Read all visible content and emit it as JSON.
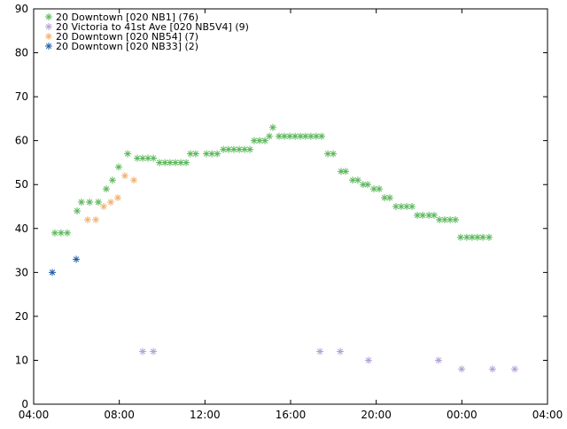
{
  "chart_data": {
    "type": "scatter",
    "legend": "upper left",
    "xlim": [
      4,
      28
    ],
    "xticks": [
      {
        "value": 4,
        "label": "04:00"
      },
      {
        "value": 8,
        "label": "08:00"
      },
      {
        "value": 12,
        "label": "12:00"
      },
      {
        "value": 16,
        "label": "16:00"
      },
      {
        "value": 20,
        "label": "20:00"
      },
      {
        "value": 24,
        "label": "00:00"
      },
      {
        "value": 28,
        "label": "04:00"
      }
    ],
    "ylim": [
      0,
      90
    ],
    "yticks": [
      0,
      10,
      20,
      30,
      40,
      50,
      60,
      70,
      80,
      90
    ],
    "series": [
      {
        "name": "20 Downtown [020 NB1] (76)",
        "color": "#5cb85c",
        "x": [
          4.99,
          5.28,
          5.57,
          6.03,
          6.23,
          6.61,
          7.02,
          7.39,
          7.68,
          7.97,
          8.39,
          8.84,
          9.09,
          9.34,
          9.59,
          9.88,
          10.13,
          10.37,
          10.62,
          10.87,
          11.12,
          11.32,
          11.57,
          12.07,
          12.32,
          12.57,
          12.86,
          13.1,
          13.35,
          13.6,
          13.85,
          14.1,
          14.3,
          14.55,
          14.8,
          15.01,
          15.17,
          15.46,
          15.71,
          15.96,
          16.21,
          16.46,
          16.7,
          16.95,
          17.2,
          17.45,
          17.74,
          17.99,
          18.36,
          18.57,
          18.9,
          19.14,
          19.39,
          19.6,
          19.89,
          20.14,
          20.39,
          20.63,
          20.92,
          21.17,
          21.42,
          21.67,
          21.92,
          22.17,
          22.46,
          22.7,
          22.95,
          23.2,
          23.45,
          23.7,
          23.94,
          24.23,
          24.48,
          24.73,
          24.98,
          25.27
        ],
        "values": [
          39,
          39,
          39,
          44,
          46,
          46,
          46,
          49,
          51,
          54,
          57,
          56,
          56,
          56,
          56,
          55,
          55,
          55,
          55,
          55,
          55,
          57,
          57,
          57,
          57,
          57,
          58,
          58,
          58,
          58,
          58,
          58,
          60,
          60,
          60,
          61,
          63,
          61,
          61,
          61,
          61,
          61,
          61,
          61,
          61,
          61,
          57,
          57,
          53,
          53,
          51,
          51,
          50,
          50,
          49,
          49,
          47,
          47,
          45,
          45,
          45,
          45,
          43,
          43,
          43,
          43,
          42,
          42,
          42,
          42,
          38,
          38,
          38,
          38,
          38,
          38
        ]
      },
      {
        "name": "20 Victoria to 41st Ave [020 NB5V4] (9)",
        "color": "#b3a0d8",
        "x": [
          9.09,
          9.59,
          17.37,
          18.32,
          19.64,
          22.91,
          23.99,
          25.43,
          26.47
        ],
        "values": [
          12,
          12,
          12,
          12,
          10,
          10,
          8,
          8,
          8
        ]
      },
      {
        "name": "20 Downtown [020 NB54] (7)",
        "color": "#f0b070",
        "x": [
          6.52,
          6.9,
          7.27,
          7.6,
          7.93,
          8.26,
          8.68
        ],
        "values": [
          42,
          42,
          45,
          46,
          47,
          52,
          51
        ]
      },
      {
        "name": "20 Downtown [020 NB33] (2)",
        "color": "#1f5fa8",
        "x": [
          4.87,
          5.99
        ],
        "values": [
          30,
          33
        ]
      }
    ]
  }
}
